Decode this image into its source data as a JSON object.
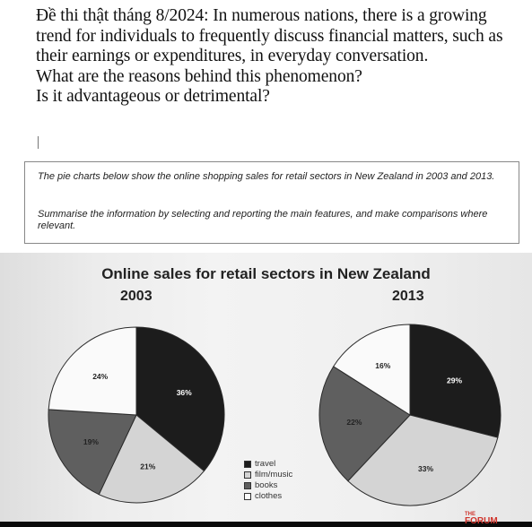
{
  "question": {
    "paragraph1": "Đề thi thật tháng 8/2024: In numerous nations, there is a growing trend for individuals to frequently discuss financial matters, such as their earnings or expenditures, in everyday conversation.",
    "line2": "What are the reasons behind this phenomenon?",
    "line3": "Is it advantageous or detrimental?"
  },
  "task": {
    "line1": "The pie charts below show the online shopping sales for retail sectors in New Zealand in 2003 and 2013.",
    "line2": "Summarise the information by selecting and reporting the main features, and make comparisons where relevant."
  },
  "colors": {
    "travel": "#1c1c1c",
    "film_music": "#d4d4d4",
    "books": "#5f5f5f",
    "clothes": "#fafafa"
  },
  "chart_data": {
    "type": "pie",
    "title": "Online sales for retail sectors in New Zealand",
    "categories": [
      "travel",
      "film/music",
      "books",
      "clothes"
    ],
    "series": [
      {
        "name": "2003",
        "values": [
          36,
          21,
          19,
          24
        ],
        "labels": [
          "36%",
          "21%",
          "19%",
          "24%"
        ]
      },
      {
        "name": "2013",
        "values": [
          29,
          33,
          22,
          16
        ],
        "labels": [
          "29%",
          "33%",
          "22%",
          "16%"
        ]
      }
    ],
    "legend_position": "bottom-center"
  },
  "brand": {
    "line1": "THE",
    "line2": "FORUM"
  }
}
